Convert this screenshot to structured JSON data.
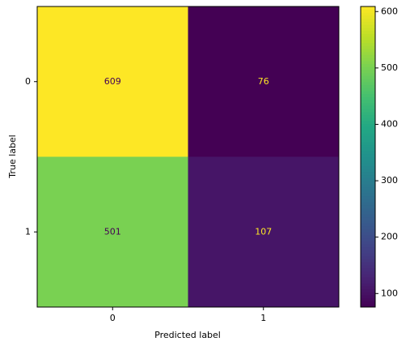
{
  "chart_data": {
    "type": "heatmap",
    "x_label": "Predicted label",
    "y_label": "True label",
    "x_categories": [
      "0",
      "1"
    ],
    "y_categories": [
      "0",
      "1"
    ],
    "values": [
      [
        609,
        76
      ],
      [
        501,
        107
      ]
    ],
    "colormap": "viridis",
    "clim": [
      76,
      609
    ],
    "colorbar_ticks": [
      100,
      200,
      300,
      400,
      500,
      600
    ]
  }
}
